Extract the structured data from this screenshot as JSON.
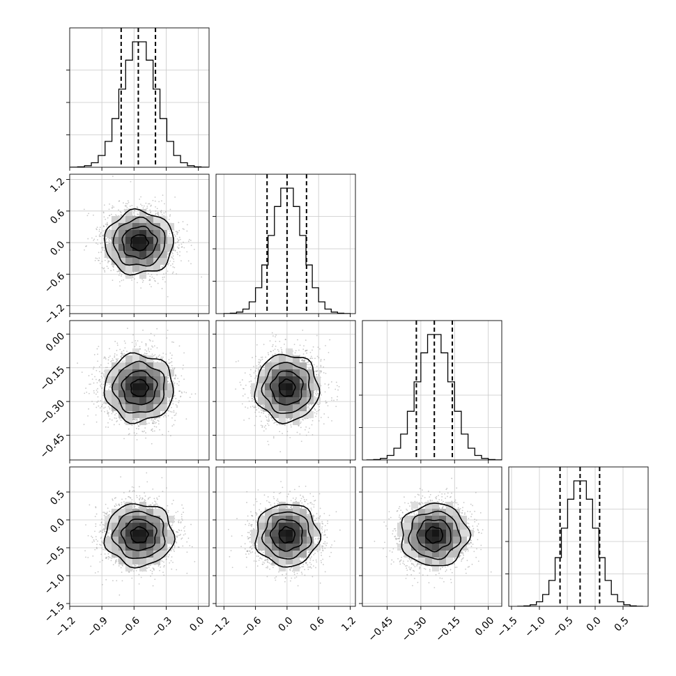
{
  "chart_data": {
    "type": "corner",
    "parameters": [
      {
        "mean": -0.55,
        "std": 0.16,
        "quantiles": [
          -0.72,
          -0.56,
          -0.4
        ],
        "range": [
          -1.2,
          0.1
        ],
        "ticks": [
          -1.2,
          -0.9,
          -0.6,
          -0.3,
          0.0
        ],
        "tick_labels": [
          "−1.2",
          "−0.9",
          "−0.6",
          "−0.3",
          "0.0"
        ]
      },
      {
        "mean": 0.0,
        "std": 0.3,
        "quantiles": [
          -0.38,
          0.0,
          0.37
        ],
        "range": [
          -1.35,
          1.3
        ],
        "ticks": [
          -1.2,
          -0.6,
          0.0,
          0.6,
          1.2
        ],
        "tick_labels": [
          "−1.2",
          "−0.6",
          "0.0",
          "0.6",
          "1.2"
        ]
      },
      {
        "mean": -0.24,
        "std": 0.075,
        "quantiles": [
          -0.32,
          -0.24,
          -0.16
        ],
        "range": [
          -0.56,
          0.06
        ],
        "ticks": [
          -0.45,
          -0.3,
          -0.15,
          0.0
        ],
        "tick_labels": [
          "−0.45",
          "−0.30",
          "−0.15",
          "0.00"
        ]
      },
      {
        "mean": -0.27,
        "std": 0.28,
        "quantiles": [
          -0.63,
          -0.27,
          0.08
        ],
        "range": [
          -1.55,
          0.95
        ],
        "ticks": [
          -1.5,
          -1.0,
          -0.5,
          0.0,
          0.5
        ],
        "tick_labels": [
          "−1.5",
          "−1.0",
          "−0.5",
          "0.0",
          "0.5"
        ]
      }
    ],
    "histogram_bins": 20,
    "contour_levels_sigma": [
      0.5,
      1.0,
      1.5,
      2.0
    ],
    "scatter_points_per_panel": 2600,
    "grid": true,
    "quantile_line_style": "dashed"
  }
}
